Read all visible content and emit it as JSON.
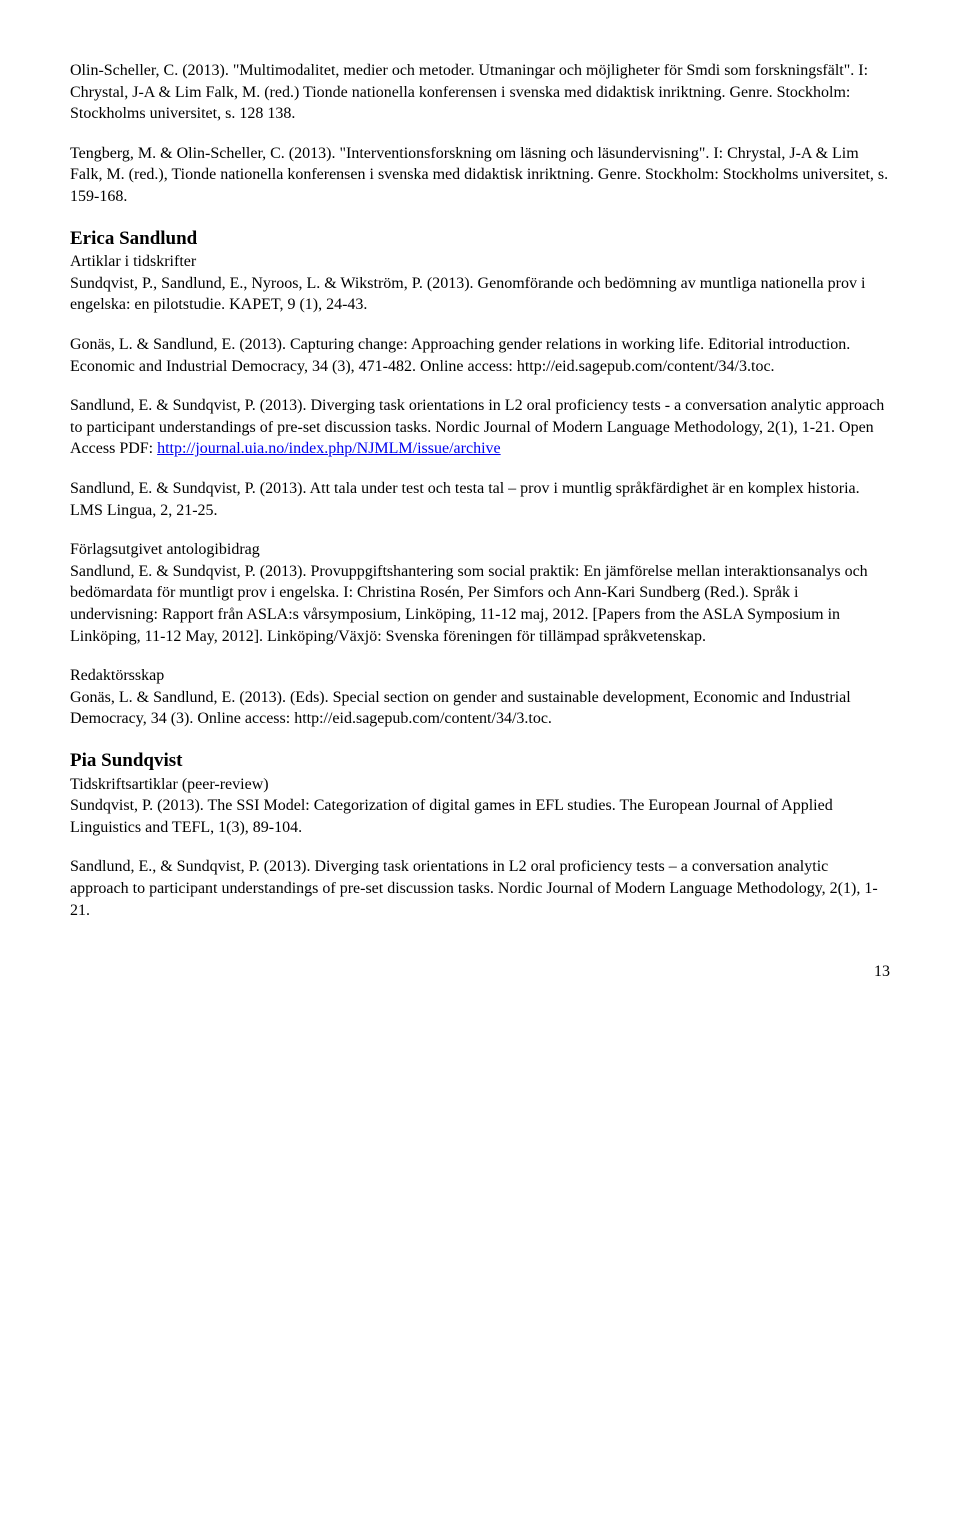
{
  "paragraphs": {
    "p1": "Olin-Scheller, C. (2013). \"Multimodalitet, medier och metoder. Utmaningar och möjligheter för Smdi som forskningsfält\". I: Chrystal, J-A & Lim Falk, M. (red.) Tionde nationella konferensen i svenska med didaktisk inriktning. Genre. Stockholm: Stockholms universitet, s. 128 138.",
    "p2": "Tengberg, M. & Olin-Scheller, C. (2013). \"Interventionsforskning om läsning och läsundervisning\". I: Chrystal, J-A & Lim Falk, M. (red.), Tionde nationella konferensen i svenska med didaktisk inriktning. Genre. Stockholm: Stockholms universitet, s. 159-168.",
    "erica_heading": "Erica Sandlund",
    "erica_sub": "Artiklar i tidskrifter",
    "p3": "Sundqvist, P., Sandlund, E., Nyroos, L. & Wikström, P. (2013). Genomförande och bedömning av muntliga nationella prov i engelska: en pilotstudie. KAPET, 9 (1), 24-43.",
    "p4": "Gonäs, L. & Sandlund, E. (2013). Capturing change: Approaching gender relations in working life. Editorial introduction. Economic and Industrial Democracy, 34 (3), 471-482. Online access: http://eid.sagepub.com/content/34/3.toc.",
    "p5a": "Sandlund, E. & Sundqvist, P. (2013). Diverging task orientations in L2 oral proficiency tests - a conversation analytic approach to participant understandings of pre-set discussion tasks. Nordic Journal of Modern Language Methodology, 2(1), 1-21. Open Access PDF: ",
    "p5link": "http://journal.uia.no/index.php/NJMLM/issue/archive",
    "p6": "Sandlund, E. & Sundqvist, P. (2013). Att tala under test och testa tal – prov i muntlig språkfärdighet är en komplex historia. LMS Lingua, 2, 21-25.",
    "forlag_sub": "Förlagsutgivet antologibidrag",
    "p7": "Sandlund, E. & Sundqvist, P. (2013). Provuppgiftshantering som social praktik: En jämförelse mellan interaktionsanalys och bedömardata för muntligt prov i engelska. I: Christina Rosén, Per Simfors och Ann-Kari Sundberg (Red.). Språk i undervisning: Rapport från ASLA:s vårsymposium, Linköping, 11-12 maj, 2012. [Papers from the ASLA Symposium in Linköping, 11-12 May, 2012]. Linköping/Växjö: Svenska föreningen för tillämpad språkvetenskap.",
    "redakt_sub": "Redaktörsskap",
    "p8": "Gonäs, L. & Sandlund, E. (2013). (Eds). Special section on gender and sustainable development, Economic and Industrial Democracy, 34 (3). Online access: http://eid.sagepub.com/content/34/3.toc.",
    "pia_heading": "Pia Sundqvist",
    "pia_sub": "Tidskriftsartiklar (peer-review)",
    "p9": "Sundqvist, P. (2013). The SSI Model: Categorization of digital games in EFL studies. The European Journal of Applied Linguistics and TEFL, 1(3), 89-104.",
    "p10": "Sandlund, E., & Sundqvist, P. (2013). Diverging task orientations in L2 oral proficiency tests – a conversation analytic approach to participant understandings of pre-set discussion tasks. Nordic Journal of Modern Language Methodology, 2(1), 1-21."
  },
  "page_number": "13"
}
